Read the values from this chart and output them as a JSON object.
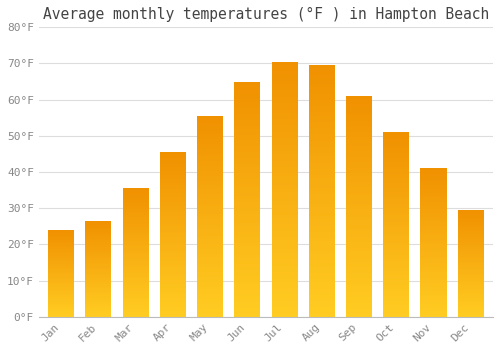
{
  "title": "Average monthly temperatures (°F ) in Hampton Beach",
  "months": [
    "Jan",
    "Feb",
    "Mar",
    "Apr",
    "May",
    "Jun",
    "Jul",
    "Aug",
    "Sep",
    "Oct",
    "Nov",
    "Dec"
  ],
  "values": [
    24,
    26.5,
    35.5,
    45.5,
    55.5,
    65,
    70.5,
    69.5,
    61,
    51,
    41,
    29.5
  ],
  "bar_color": "#F5A623",
  "bar_edge_color": "#E8960A",
  "background_color": "#FFFFFF",
  "plot_bg_color": "#FFFFFF",
  "grid_color": "#DDDDDD",
  "text_color": "#888888",
  "title_color": "#444444",
  "ylim": [
    0,
    80
  ],
  "yticks": [
    0,
    10,
    20,
    30,
    40,
    50,
    60,
    70,
    80
  ],
  "ytick_labels": [
    "0°F",
    "10°F",
    "20°F",
    "30°F",
    "40°F",
    "50°F",
    "60°F",
    "70°F",
    "80°F"
  ],
  "title_fontsize": 10.5,
  "tick_fontsize": 8
}
